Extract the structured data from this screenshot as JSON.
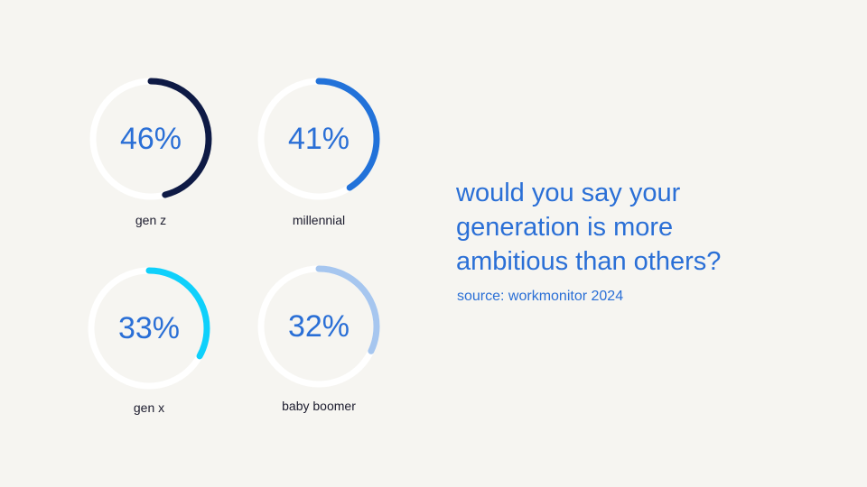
{
  "chart_data": {
    "type": "pie",
    "title": "",
    "question_lines": [
      "would you say your",
      "generation is more",
      "ambitious than others?"
    ],
    "source": "source: workmonitor 2024",
    "items": [
      {
        "category": "gen z",
        "value": 46,
        "label": "46%",
        "color": "#0e1a45"
      },
      {
        "category": "millennial",
        "value": 41,
        "label": "41%",
        "color": "#2272d9"
      },
      {
        "category": "gen x",
        "value": 33,
        "label": "33%",
        "color": "#0fd0fb"
      },
      {
        "category": "baby boomer",
        "value": 32,
        "label": "32%",
        "color": "#a6c6ef"
      }
    ],
    "track_color": "#ffffff",
    "max": 100
  }
}
